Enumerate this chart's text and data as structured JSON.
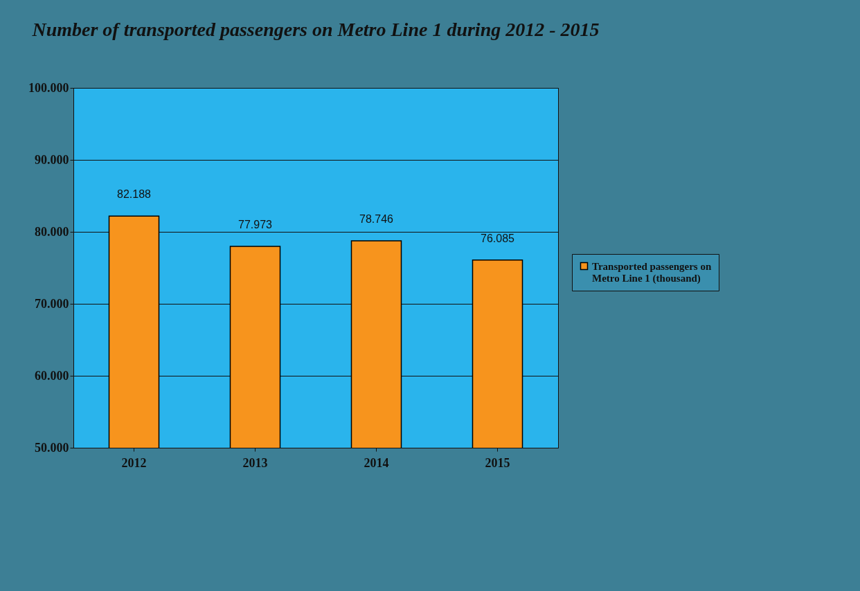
{
  "chart_data": {
    "type": "bar",
    "title": "Number of transported passengers on Metro Line 1 during 2012 - 2015",
    "categories": [
      "2012",
      "2013",
      "2014",
      "2015"
    ],
    "series": [
      {
        "name": "Transported passengers on Metro Line 1 (thousand)",
        "color": "#f7941d",
        "values": [
          82188,
          77973,
          78746,
          76085
        ],
        "value_labels": [
          "82.188",
          "77.973",
          "78.746",
          "76.085"
        ]
      }
    ],
    "ylim": [
      50000,
      100000
    ],
    "yticks": [
      {
        "value": 50000,
        "label": "50.000"
      },
      {
        "value": 60000,
        "label": "60.000"
      },
      {
        "value": 70000,
        "label": "70.000"
      },
      {
        "value": 80000,
        "label": "80.000"
      },
      {
        "value": 90000,
        "label": "90.000"
      },
      {
        "value": 100000,
        "label": "100.000"
      }
    ],
    "grid": "y",
    "legend": "right"
  }
}
